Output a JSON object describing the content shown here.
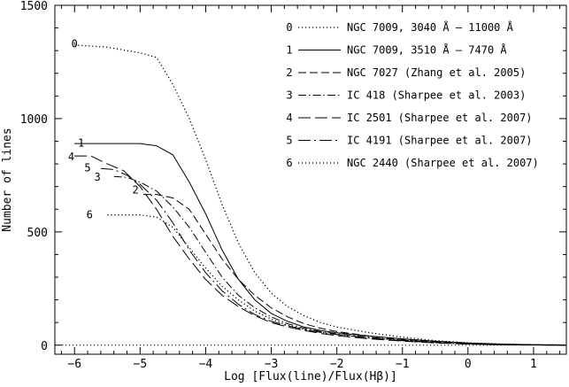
{
  "chart_data": {
    "type": "line",
    "title": "",
    "xlabel": "Log [Flux(line)/Flux(Hβ)]",
    "ylabel": "Number of lines",
    "xlim": [
      -6.3,
      1.5
    ],
    "ylim": [
      -40,
      1500
    ],
    "xticks": [
      -6,
      -5,
      -4,
      -3,
      -2,
      -1,
      0,
      1
    ],
    "xtick_labels": [
      "−6",
      "−5",
      "−4",
      "−3",
      "−2",
      "−1",
      "0",
      "1"
    ],
    "yticks": [
      0,
      500,
      1000,
      1500
    ],
    "ytick_labels": [
      "0",
      "500",
      "1000",
      "1500"
    ],
    "reference_line": {
      "y": 0,
      "style": "dotted"
    },
    "legend_position": "top-right",
    "series": [
      {
        "id": "0",
        "name": "NGC 7009, 3040 Å – 11000 Å",
        "dash": "dotted",
        "label_at": [
          -6.0,
          1330
        ],
        "x": [
          -6.0,
          -5.5,
          -5.0,
          -4.75,
          -4.5,
          -4.25,
          -4.0,
          -3.75,
          -3.5,
          -3.25,
          -3.0,
          -2.75,
          -2.5,
          -2.25,
          -2.0,
          -1.5,
          -1.0,
          -0.5,
          0.0,
          0.5,
          1.0,
          1.5
        ],
        "y": [
          1325,
          1315,
          1290,
          1270,
          1150,
          1000,
          820,
          620,
          450,
          320,
          230,
          170,
          130,
          100,
          80,
          55,
          35,
          20,
          10,
          5,
          2,
          1
        ]
      },
      {
        "id": "1",
        "name": "NGC 7009, 3510 Å – 7470 Å",
        "dash": "solid",
        "label_at": [
          -5.9,
          893
        ],
        "x": [
          -6.0,
          -5.5,
          -5.0,
          -4.75,
          -4.5,
          -4.25,
          -4.0,
          -3.75,
          -3.5,
          -3.25,
          -3.0,
          -2.75,
          -2.5,
          -2.25,
          -2.0,
          -1.5,
          -1.0,
          -0.5,
          0.0,
          0.5,
          1.0,
          1.5
        ],
        "y": [
          890,
          890,
          890,
          880,
          840,
          720,
          580,
          420,
          290,
          200,
          140,
          105,
          80,
          65,
          55,
          40,
          28,
          18,
          10,
          5,
          2,
          1
        ]
      },
      {
        "id": "2",
        "name": "NGC 7027 (Zhang et al. 2005)",
        "dash": "dashed",
        "label_at": [
          -5.07,
          685
        ],
        "x": [
          -4.95,
          -4.75,
          -4.5,
          -4.25,
          -4.0,
          -3.75,
          -3.5,
          -3.25,
          -3.0,
          -2.75,
          -2.5,
          -2.25,
          -2.0,
          -1.5,
          -1.0,
          -0.5,
          0.0,
          0.5,
          1.0,
          1.5
        ],
        "y": [
          665,
          665,
          650,
          600,
          490,
          380,
          290,
          220,
          165,
          125,
          95,
          75,
          60,
          40,
          25,
          15,
          8,
          4,
          2,
          1
        ]
      },
      {
        "id": "3",
        "name": "IC 418 (Sharpee et al. 2003)",
        "dash": "dashdot",
        "label_at": [
          -5.65,
          742
        ],
        "x": [
          -5.4,
          -5.2,
          -5.0,
          -4.75,
          -4.5,
          -4.25,
          -4.0,
          -3.75,
          -3.5,
          -3.25,
          -3.0,
          -2.75,
          -2.5,
          -2.25,
          -2.0,
          -1.5,
          -1.0,
          -0.5,
          0.0,
          0.5,
          1.0,
          1.5
        ],
        "y": [
          745,
          740,
          720,
          680,
          610,
          520,
          410,
          300,
          220,
          165,
          125,
          95,
          75,
          60,
          50,
          35,
          22,
          13,
          7,
          3,
          1,
          0
        ]
      },
      {
        "id": "4",
        "name": "IC 2501 (Sharpee et al. 2007)",
        "dash": "longdash",
        "label_at": [
          -6.05,
          831
        ],
        "x": [
          -6.0,
          -5.75,
          -5.5,
          -5.25,
          -5.0,
          -4.75,
          -4.5,
          -4.25,
          -4.0,
          -3.75,
          -3.5,
          -3.25,
          -3.0,
          -2.75,
          -2.5,
          -2.25,
          -2.0,
          -1.5,
          -1.0,
          -0.5,
          0.0,
          0.5,
          1.0,
          1.5
        ],
        "y": [
          835,
          835,
          800,
          770,
          700,
          600,
          480,
          380,
          290,
          220,
          170,
          130,
          100,
          80,
          65,
          52,
          42,
          28,
          18,
          10,
          5,
          2,
          1,
          0
        ]
      },
      {
        "id": "5",
        "name": "IC 4191 (Sharpee et al. 2007)",
        "dash": "longdashdot",
        "label_at": [
          -5.8,
          782
        ],
        "x": [
          -5.6,
          -5.4,
          -5.2,
          -5.0,
          -4.75,
          -4.5,
          -4.25,
          -4.0,
          -3.75,
          -3.5,
          -3.25,
          -3.0,
          -2.75,
          -2.5,
          -2.25,
          -2.0,
          -1.5,
          -1.0,
          -0.5,
          0.0,
          0.5,
          1.0,
          1.5
        ],
        "y": [
          780,
          775,
          750,
          710,
          640,
          540,
          420,
          320,
          240,
          180,
          135,
          105,
          85,
          70,
          57,
          47,
          32,
          20,
          11,
          5,
          2,
          1,
          0
        ]
      },
      {
        "id": "6",
        "name": "NGC 2440 (Sharpee et al. 2007)",
        "dash": "dotted",
        "label_at": [
          -5.77,
          575
        ],
        "x": [
          -5.5,
          -5.0,
          -4.75,
          -4.5,
          -4.25,
          -4.0,
          -3.75,
          -3.5,
          -3.25,
          -3.0,
          -2.75,
          -2.5,
          -2.25,
          -2.0,
          -1.5,
          -1.0,
          -0.5,
          0.0,
          0.5,
          1.0,
          1.5
        ],
        "y": [
          575,
          575,
          565,
          520,
          430,
          340,
          260,
          200,
          150,
          115,
          88,
          70,
          57,
          47,
          32,
          20,
          11,
          5,
          2,
          1,
          0
        ]
      }
    ]
  }
}
